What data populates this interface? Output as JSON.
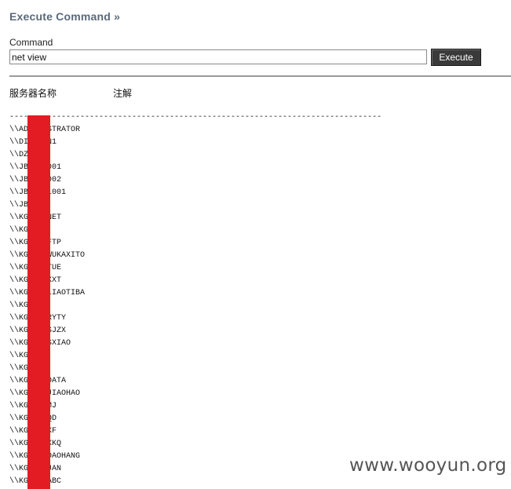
{
  "header": {
    "title": "Execute Command »"
  },
  "form": {
    "label": "Command",
    "input_value": "net view",
    "execute_label": "Execute"
  },
  "table": {
    "col_server": "服务器名称",
    "col_note": "注解"
  },
  "output": {
    "separator": "-------------------------------------------------------------------------------",
    "lines": [
      "\\\\ADMINISTRATOR",
      "\\\\DI    N1",
      "\\\\DZ",
      "\\\\JB    001",
      "\\\\JB    002",
      "\\\\JB    L001",
      "\\\\JB",
      "\\\\KG    NET",
      "\\\\KG",
      "\\\\KG    FTP",
      "\\\\KG    WUKAXITO",
      "\\\\KG    TUE",
      "\\\\KG    XXT",
      "\\\\KG    LIAOTIBA",
      "\\\\KG",
      "\\\\KG    RYTY",
      "\\\\KG    SJZX",
      "\\\\KG    SXIAO",
      "\\\\KG",
      "\\\\KG",
      "\\\\KG    DATA",
      "\\\\KG    JIAOHAO",
      "\\\\KG    MJ",
      "\\\\KG    QD",
      "\\\\KG    XF",
      "\\\\KG    XKQ",
      "\\\\KG    DAOHANG",
      "\\\\KG    JAN",
      "\\\\KG    ABC"
    ]
  },
  "watermark": {
    "text": "www.wooyun.org"
  },
  "colors": {
    "title": "#5a6a7a",
    "button_bg": "#3a3a3a",
    "redaction": "#e31c23",
    "divider": "#9a9a9a"
  }
}
